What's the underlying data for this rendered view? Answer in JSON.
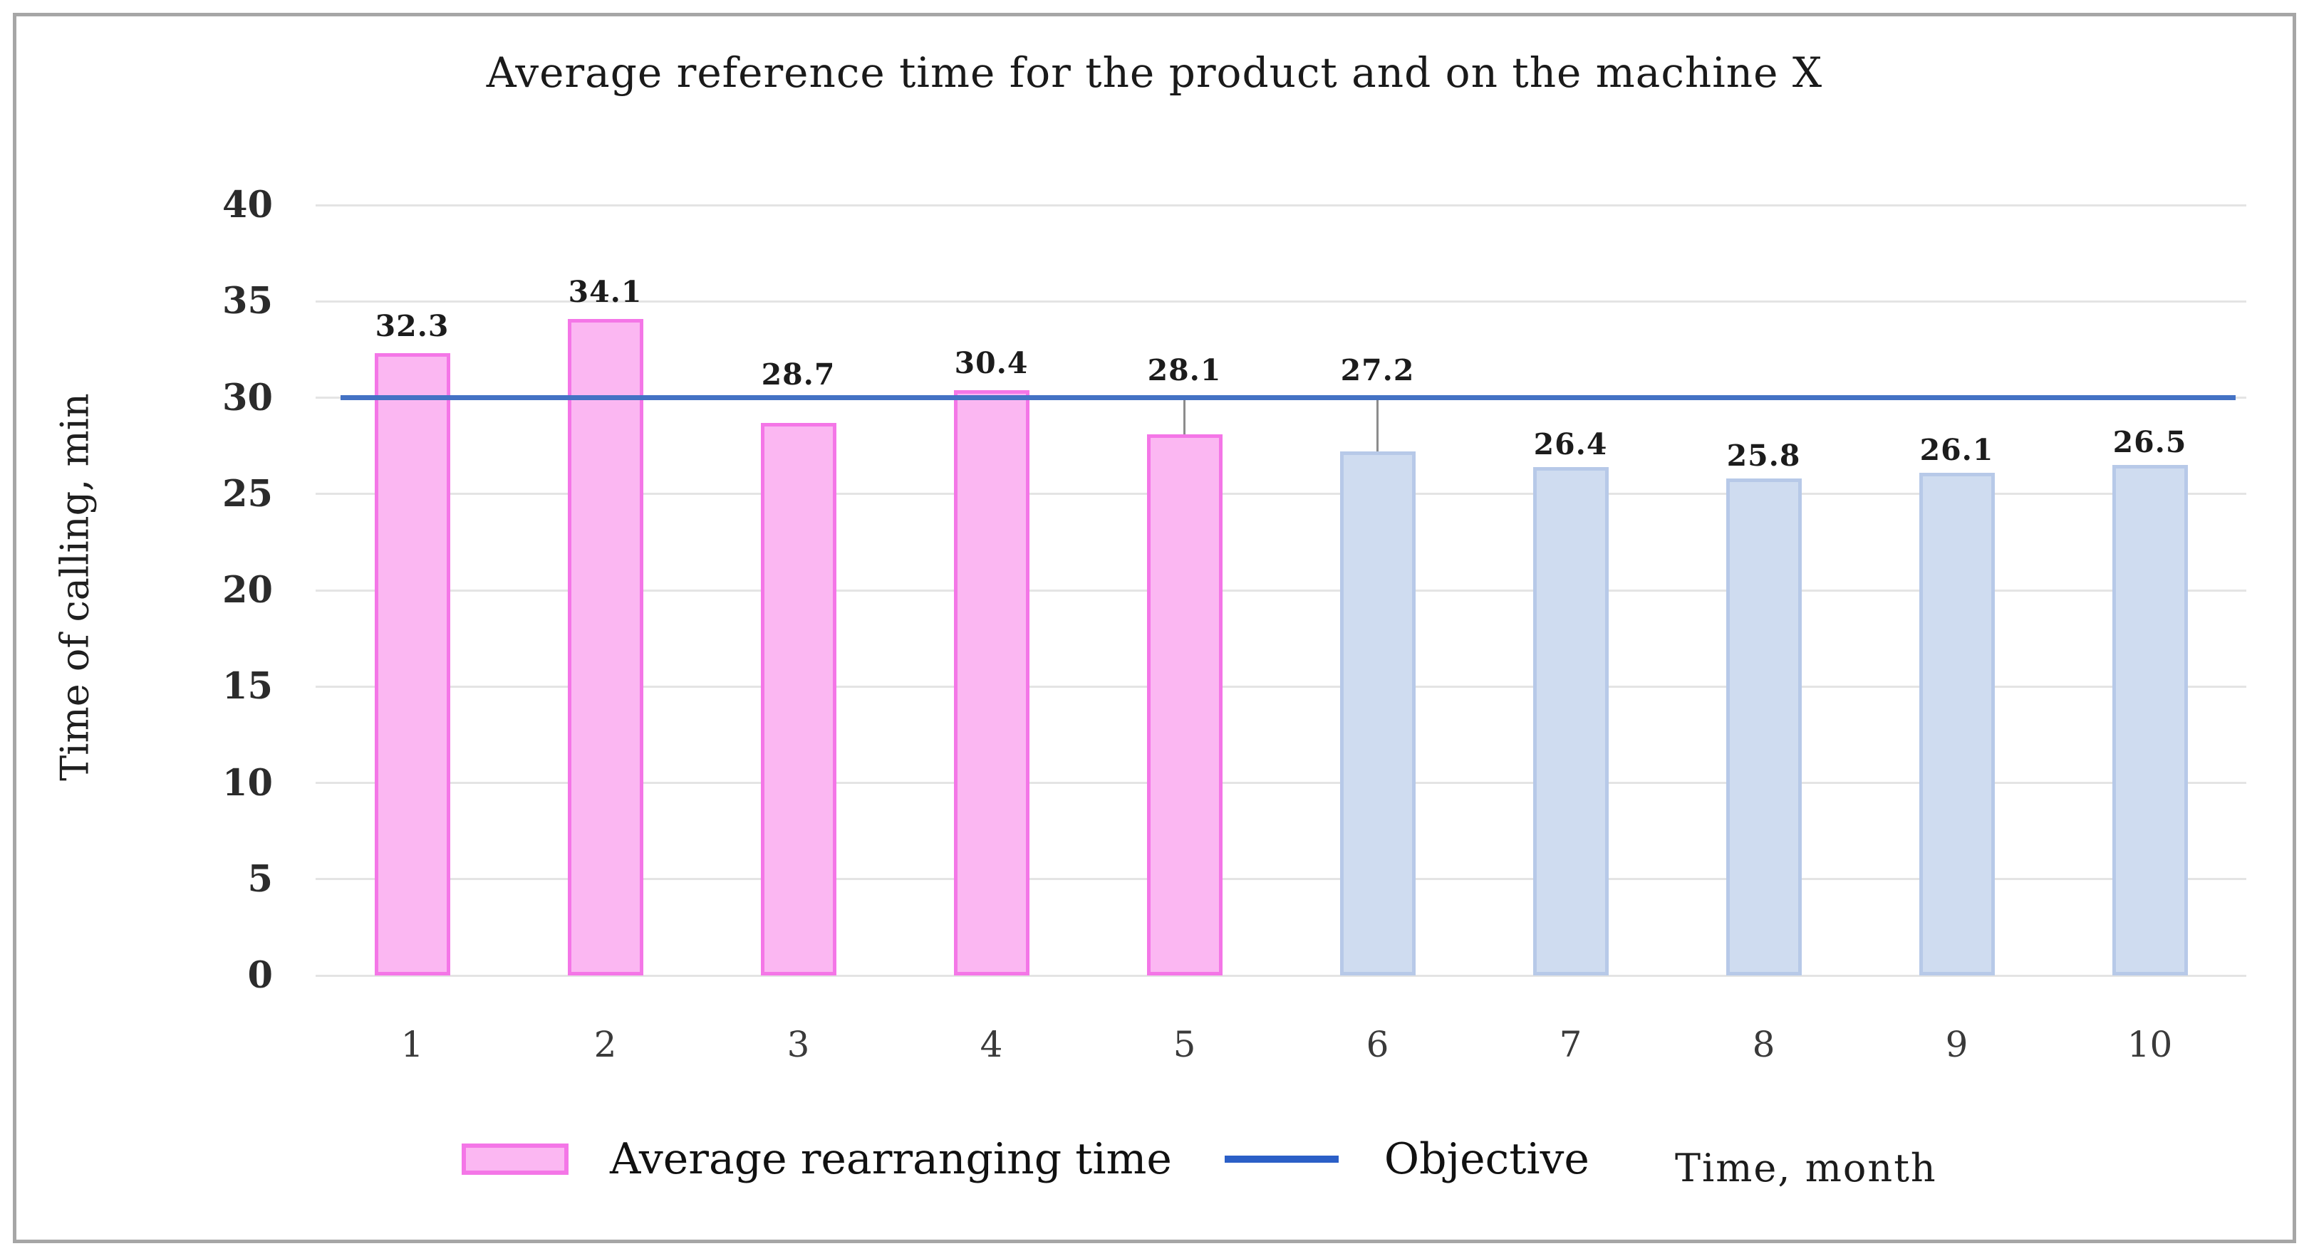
{
  "chart_data": {
    "type": "bar",
    "title": "Average reference time for the product and on the machine X",
    "xlabel": "Time, month",
    "ylabel": "Time of calling, min",
    "categories": [
      "1",
      "2",
      "3",
      "4",
      "5",
      "6",
      "7",
      "8",
      "9",
      "10"
    ],
    "series": [
      {
        "name": "Average rearranging time",
        "type": "bar",
        "values": [
          32.3,
          34.1,
          28.7,
          30.4,
          28.1,
          27.2,
          26.4,
          25.8,
          26.1,
          26.5
        ],
        "point_colors": [
          "pink",
          "pink",
          "pink",
          "pink",
          "pink",
          "blue",
          "blue",
          "blue",
          "blue",
          "blue"
        ]
      },
      {
        "name": "Objective",
        "type": "line",
        "value": 30
      }
    ],
    "ylim": [
      0,
      40
    ],
    "ytick_step": 5,
    "grid": true,
    "legend_position": "bottom",
    "palette": {
      "pink_fill": "#FBB7F2",
      "pink_border": "#F476E7",
      "blue_fill": "#CFDCF0",
      "blue_border": "#B7C9E8",
      "objective_line": "#4472C4",
      "legend_line": "#2B5FC7",
      "gridline": "#E4E4E4",
      "leader": "#8C8C8C"
    },
    "value_label_offsets": [
      14,
      14,
      44,
      14,
      66,
      90,
      8,
      8,
      8,
      8
    ],
    "value_label_leaders": [
      false,
      false,
      false,
      false,
      true,
      true,
      false,
      false,
      false,
      false
    ]
  }
}
